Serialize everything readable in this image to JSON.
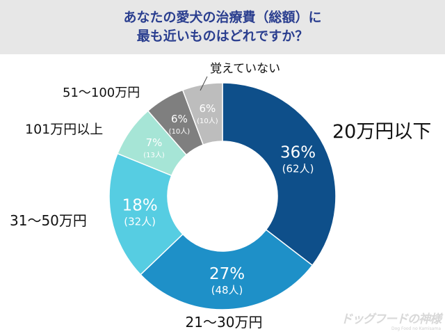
{
  "title": {
    "line1": "あなたの愛犬の治療費（総額）に",
    "line2": "最も近いものはどれですか？"
  },
  "chart_data": {
    "type": "pie",
    "style": "donut",
    "start": "top, clockwise",
    "slices": [
      {
        "label": "20万円以下",
        "percent": "36%",
        "count": "(62人)",
        "value": 62,
        "color": "#0e4f8a"
      },
      {
        "label": "21〜30万円",
        "percent": "27%",
        "count": "(48人)",
        "value": 48,
        "color": "#1e90c8"
      },
      {
        "label": "31〜50万円",
        "percent": "18%",
        "count": "(32人)",
        "value": 32,
        "color": "#56cde2"
      },
      {
        "label": "101万円以上",
        "percent": "7%",
        "count": "(13人)",
        "value": 13,
        "color": "#a6e5d6"
      },
      {
        "label": "51〜100万円",
        "percent": "6%",
        "count": "(10人)",
        "value": 10,
        "color": "#7f7f7f"
      },
      {
        "label": "覚えていない",
        "percent": "6%",
        "count": "(10人)",
        "value": 10,
        "color": "#bdbdbd"
      }
    ]
  },
  "watermark": {
    "main": "ドッグフードの神様",
    "sub": "Dog Food no Kamisama"
  }
}
